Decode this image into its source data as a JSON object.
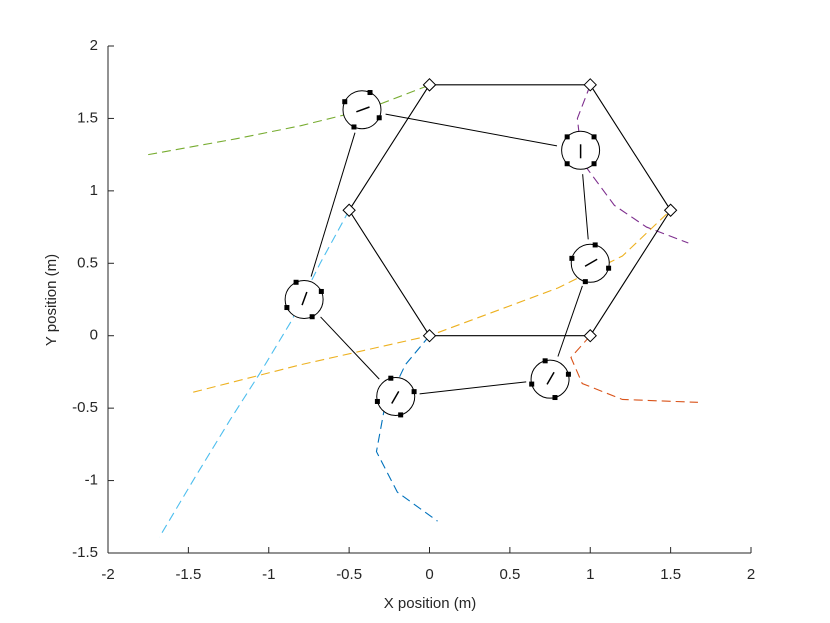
{
  "chart_data": {
    "type": "line",
    "xlabel": "X position (m)",
    "ylabel": "Y position (m)",
    "xlim": [
      -2,
      2
    ],
    "ylim": [
      -1.5,
      2
    ],
    "xticks": [
      -2,
      -1.5,
      -1,
      -0.5,
      0,
      0.5,
      1,
      1.5,
      2
    ],
    "yticks": [
      -1.5,
      -1,
      -0.5,
      0,
      0.5,
      1,
      1.5,
      2
    ],
    "series": [
      {
        "color": "#77ac30",
        "style": "dashed",
        "x": [
          -1.75,
          -1.2,
          -0.8,
          -0.4,
          0
        ],
        "y": [
          1.25,
          1.36,
          1.45,
          1.56,
          1.73
        ]
      },
      {
        "color": "#7e2f8e",
        "style": "dashed",
        "x": [
          1,
          0.92,
          0.95,
          1.15,
          1.35,
          1.61
        ],
        "y": [
          1.73,
          1.5,
          1.2,
          0.9,
          0.75,
          0.64
        ]
      },
      {
        "color": "#edb120",
        "style": "dashed",
        "x": [
          -1.47,
          -0.8,
          0,
          0.8,
          1.2,
          1.5
        ],
        "y": [
          -0.39,
          -0.2,
          0,
          0.33,
          0.55,
          0.866
        ]
      },
      {
        "color": "#d95319",
        "style": "dashed",
        "x": [
          1,
          0.88,
          0.95,
          1.2,
          1.67
        ],
        "y": [
          0,
          -0.15,
          -0.33,
          -0.44,
          -0.46
        ]
      },
      {
        "color": "#4dbeee",
        "style": "dashed",
        "x": [
          -0.5,
          -0.68,
          -0.86,
          -1.05,
          -1.24,
          -1.46,
          -1.68
        ],
        "y": [
          0.866,
          0.5,
          0.1,
          -0.25,
          -0.58,
          -0.98,
          -1.39
        ]
      },
      {
        "color": "#0072bd",
        "style": "dashed",
        "x": [
          0,
          -0.15,
          -0.28,
          -0.33,
          -0.2,
          0.05
        ],
        "y": [
          0,
          -0.2,
          -0.5,
          -0.8,
          -1.08,
          -1.28
        ]
      },
      {
        "color": "#000000",
        "style": "solid",
        "marker": "diamond",
        "x": [
          0,
          1,
          1.5,
          1,
          0,
          -0.5,
          0
        ],
        "y": [
          1.732,
          1.732,
          0.866,
          0,
          0,
          0.866,
          1.732
        ]
      }
    ],
    "robots": {
      "color": "#000000",
      "x": [
        -0.42,
        0.94,
        1.0,
        0.75,
        -0.21,
        -0.78
      ],
      "y": [
        1.56,
        1.28,
        0.5,
        -0.3,
        -0.42,
        0.25
      ],
      "heading": [
        20,
        -90,
        30,
        60,
        240,
        70
      ]
    }
  }
}
